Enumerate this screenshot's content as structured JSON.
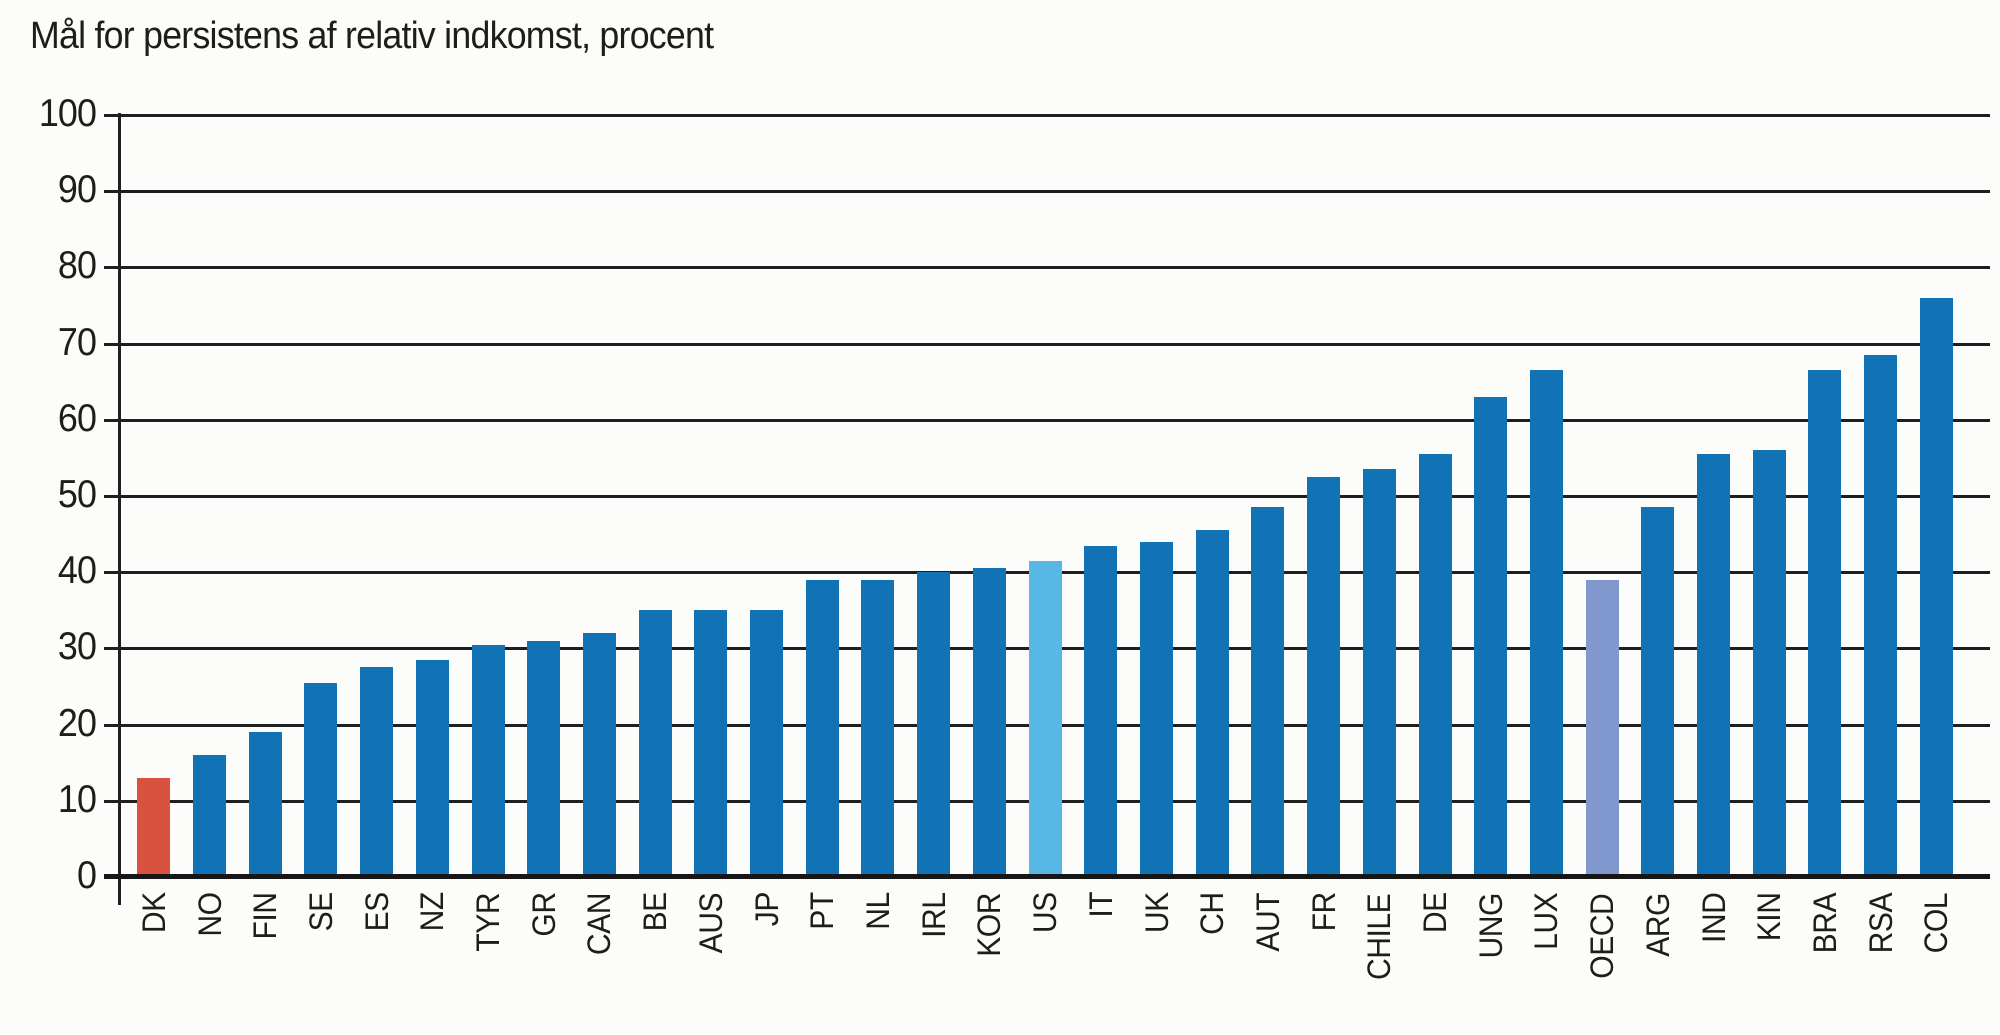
{
  "title": "Mål for persistens af relativ indkomst, procent",
  "chart_data": {
    "type": "bar",
    "title": "Mål for persistens af relativ indkomst, procent",
    "xlabel": "",
    "ylabel": "procent",
    "ylim": [
      0,
      100
    ],
    "ytick_interval": 10,
    "yticks": [
      100,
      90,
      80,
      70,
      60,
      50,
      40,
      30,
      20,
      10,
      0
    ],
    "grid": true,
    "legend": "none",
    "categories": [
      "DK",
      "NO",
      "FIN",
      "SE",
      "ES",
      "NZ",
      "TYR",
      "GR",
      "CAN",
      "BE",
      "AUS",
      "JP",
      "PT",
      "NL",
      "IRL",
      "KOR",
      "US",
      "IT",
      "UK",
      "CH",
      "AUT",
      "FR",
      "CHILE",
      "DE",
      "UNG",
      "LUX",
      "OECD",
      "ARG",
      "IND",
      "KIN",
      "BRA",
      "RSA",
      "COL"
    ],
    "values": [
      13,
      16,
      19,
      25.5,
      27.5,
      28.5,
      30.5,
      31,
      32,
      35,
      35,
      35,
      39,
      39,
      40,
      40.5,
      41.5,
      43.5,
      44,
      45.5,
      48.5,
      52.5,
      53.5,
      55.5,
      63,
      66.5,
      39,
      48.5,
      55.5,
      56,
      66.5,
      68.5,
      76
    ],
    "bar_colors": {
      "default": "#1173B5",
      "DK": "#D9513F",
      "US": "#57B8E6",
      "OECD": "#8098CE"
    },
    "gridline_color": "#1f1f1f",
    "text_color": "#1d1d1b"
  }
}
